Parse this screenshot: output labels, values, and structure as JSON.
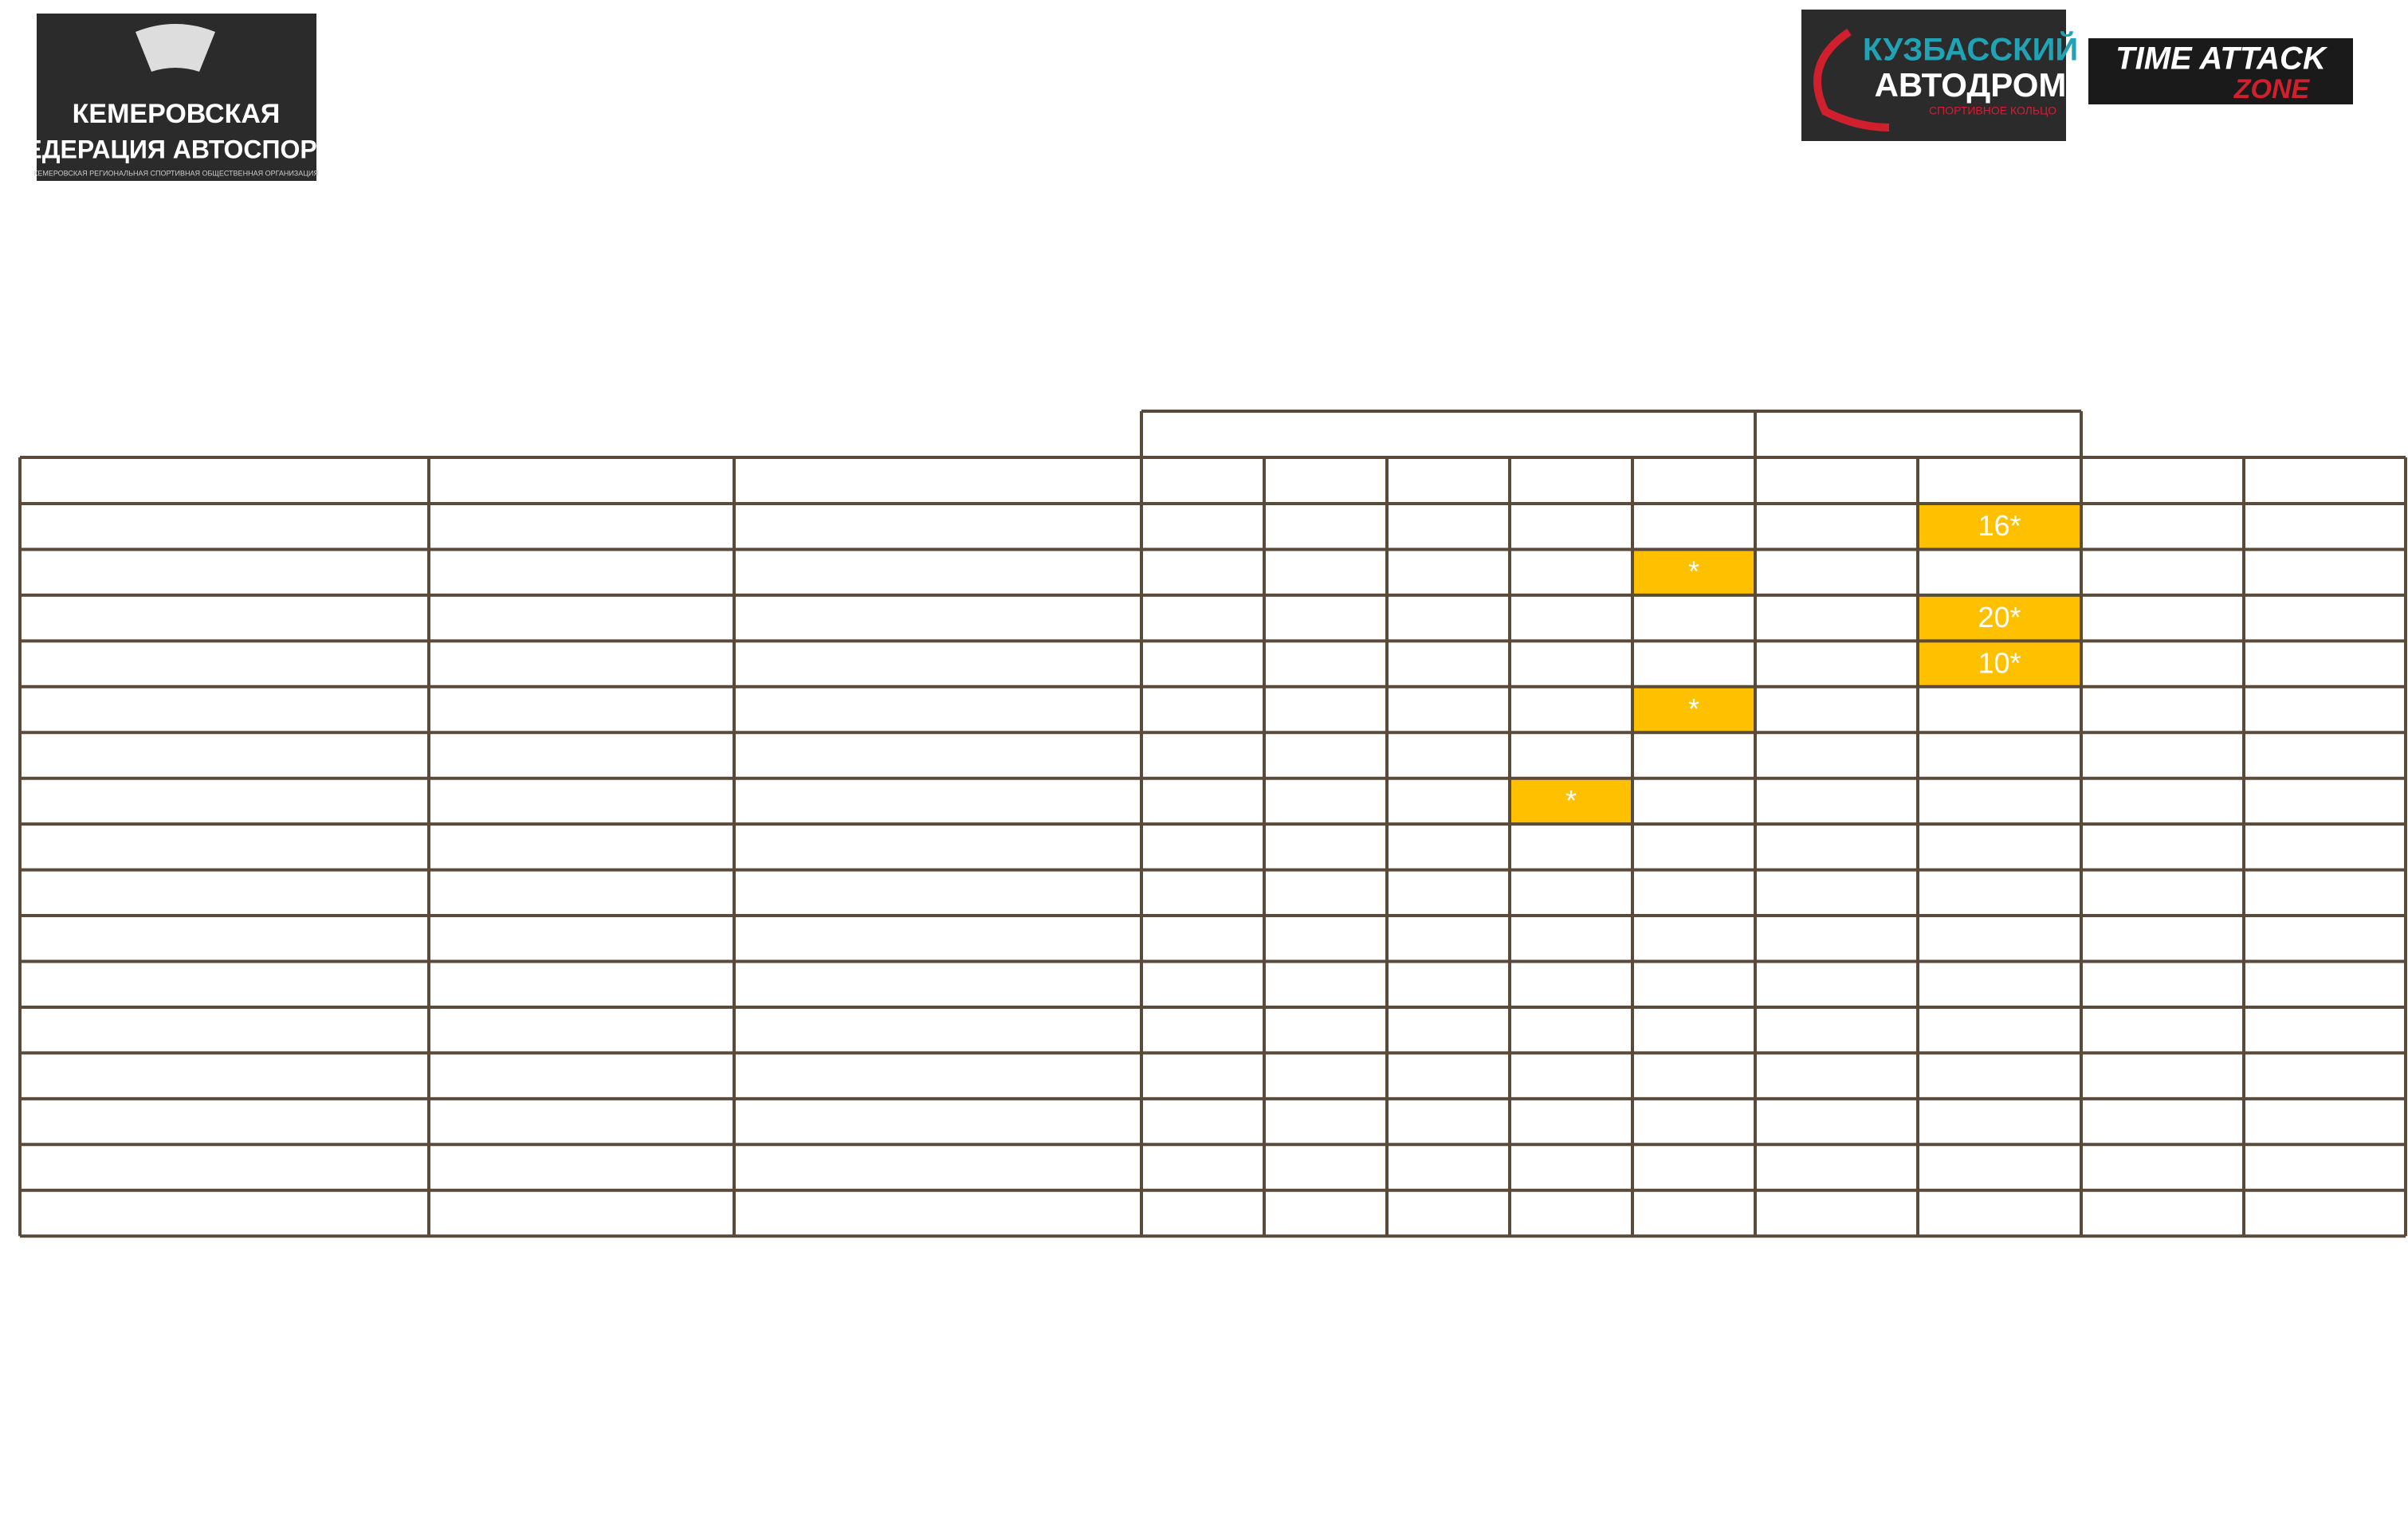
{
  "logos": {
    "federation": {
      "line1": "КЕМЕРОВСКАЯ",
      "line2": "ФЕДЕРАЦИЯ АВТОСПОРТА",
      "line3": "КЕМЕРОВСКАЯ РЕГИОНАЛЬНАЯ СПОРТИВНАЯ ОБЩЕСТВЕННАЯ ОРГАНИЗАЦИЯ"
    },
    "autodrom": {
      "line1": "КУЗБАССКИЙ",
      "line2": "АВТОДРОМ",
      "line3": "СПОРТИВНОЕ КОЛЬЦО"
    },
    "timeattack": {
      "line1": "TIME ATTACK",
      "line2": "ZONE"
    }
  },
  "table": {
    "rows": [
      [
        null,
        null,
        null,
        null,
        null,
        null,
        null,
        null,
        null,
        "16*",
        null,
        null
      ],
      [
        null,
        null,
        null,
        null,
        null,
        null,
        null,
        "*",
        null,
        null,
        null,
        null
      ],
      [
        null,
        null,
        null,
        null,
        null,
        null,
        null,
        null,
        null,
        "20*",
        null,
        null
      ],
      [
        null,
        null,
        null,
        null,
        null,
        null,
        null,
        null,
        null,
        "10*",
        null,
        null
      ],
      [
        null,
        null,
        null,
        null,
        null,
        null,
        null,
        "*",
        null,
        null,
        null,
        null
      ],
      [
        null,
        null,
        null,
        null,
        null,
        null,
        null,
        null,
        null,
        null,
        null,
        null
      ],
      [
        null,
        null,
        null,
        null,
        null,
        null,
        "*",
        null,
        null,
        null,
        null,
        null
      ],
      [
        null,
        null,
        null,
        null,
        null,
        null,
        null,
        null,
        null,
        null,
        null,
        null
      ],
      [
        null,
        null,
        null,
        null,
        null,
        null,
        null,
        null,
        null,
        null,
        null,
        null
      ],
      [
        null,
        null,
        null,
        null,
        null,
        null,
        null,
        null,
        null,
        null,
        null,
        null
      ],
      [
        null,
        null,
        null,
        null,
        null,
        null,
        null,
        null,
        null,
        null,
        null,
        null
      ],
      [
        null,
        null,
        null,
        null,
        null,
        null,
        null,
        null,
        null,
        null,
        null,
        null
      ],
      [
        null,
        null,
        null,
        null,
        null,
        null,
        null,
        null,
        null,
        null,
        null,
        null
      ],
      [
        null,
        null,
        null,
        null,
        null,
        null,
        null,
        null,
        null,
        null,
        null,
        null
      ],
      [
        null,
        null,
        null,
        null,
        null,
        null,
        null,
        null,
        null,
        null,
        null,
        null
      ],
      [
        null,
        null,
        null,
        null,
        null,
        null,
        null,
        null,
        null,
        null,
        null,
        null
      ]
    ]
  }
}
